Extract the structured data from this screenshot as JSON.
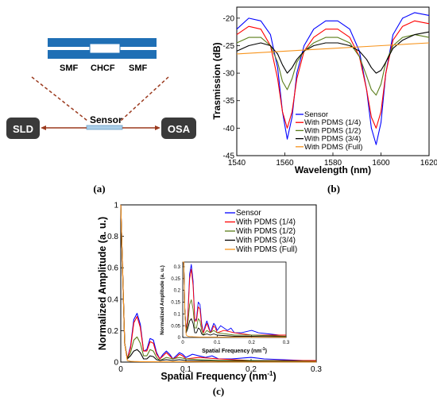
{
  "panel_a": {
    "fiber_labels": [
      "SMF",
      "CHCF",
      "SMF"
    ],
    "sensor_label": "Sensor",
    "source_label": "SLD",
    "analyzer_label": "OSA",
    "colors": {
      "fiber_blue": "#1f6fb5",
      "core_white": "#ffffff",
      "box_dark": "#3a3a3a",
      "arrow_brown": "#9b3a1e",
      "sensor_blue": "#a9cde8",
      "dash": "#9b3a1e"
    }
  },
  "captions": {
    "a": "(a)",
    "b": "(b)",
    "c": "(c)"
  },
  "chart_data": [
    {
      "type": "line",
      "xlabel": "Wavelength (nm)",
      "ylabel": "Trasmission (dB)",
      "xlim": [
        1540,
        1620
      ],
      "ylim": [
        -45,
        -18
      ],
      "xticks": [
        1540,
        1560,
        1580,
        1600,
        1620
      ],
      "yticks": [
        -45,
        -40,
        -35,
        -30,
        -25,
        -20
      ],
      "legend_position": "bottom-left",
      "series": [
        {
          "name": "Sensor",
          "color": "#0000ff",
          "x": [
            1540,
            1545,
            1550,
            1554,
            1557,
            1559,
            1561,
            1563,
            1565,
            1568,
            1572,
            1577,
            1582,
            1587,
            1591,
            1594,
            1596,
            1598,
            1600,
            1602,
            1605,
            1609,
            1614,
            1620
          ],
          "y": [
            -22,
            -20,
            -20.5,
            -23,
            -29,
            -37,
            -42,
            -38,
            -30,
            -25,
            -22,
            -20.5,
            -20.5,
            -22,
            -26,
            -33,
            -40,
            -43,
            -39,
            -30,
            -23,
            -20,
            -19,
            -19.5
          ]
        },
        {
          "name": "With PDMS (1/4)",
          "color": "#ff0000",
          "x": [
            1540,
            1545,
            1550,
            1554,
            1557,
            1559,
            1561,
            1563,
            1565,
            1568,
            1572,
            1577,
            1582,
            1587,
            1591,
            1594,
            1596,
            1598,
            1600,
            1602,
            1605,
            1609,
            1614,
            1620
          ],
          "y": [
            -23,
            -21.5,
            -22,
            -25,
            -31,
            -37,
            -40,
            -37,
            -31,
            -26,
            -23.5,
            -22,
            -22,
            -23.5,
            -27,
            -33,
            -38,
            -40,
            -37,
            -30,
            -24,
            -21.5,
            -20.5,
            -21
          ]
        },
        {
          "name": "With PDMS (1/2)",
          "color": "#5a7d1a",
          "x": [
            1540,
            1545,
            1550,
            1554,
            1557,
            1559,
            1561,
            1563,
            1565,
            1568,
            1572,
            1577,
            1582,
            1587,
            1591,
            1594,
            1596,
            1598,
            1600,
            1602,
            1605,
            1609,
            1614,
            1620
          ],
          "y": [
            -24.5,
            -23.5,
            -23.5,
            -25,
            -28,
            -31.5,
            -33,
            -31,
            -28,
            -26,
            -24.5,
            -23.5,
            -23.5,
            -24.5,
            -27,
            -30.5,
            -33,
            -34,
            -32,
            -28,
            -25,
            -23.5,
            -23,
            -23.5
          ]
        },
        {
          "name": "With PDMS (3/4)",
          "color": "#000000",
          "x": [
            1540,
            1545,
            1550,
            1554,
            1557,
            1559,
            1561,
            1563,
            1565,
            1568,
            1572,
            1577,
            1582,
            1587,
            1591,
            1594,
            1596,
            1598,
            1600,
            1602,
            1605,
            1609,
            1614,
            1620
          ],
          "y": [
            -26,
            -25,
            -24.5,
            -25,
            -26.5,
            -28.5,
            -30,
            -29,
            -27.5,
            -26,
            -25,
            -24.5,
            -24.5,
            -25,
            -26,
            -27.5,
            -29,
            -30,
            -29.5,
            -28,
            -25.5,
            -24,
            -23,
            -22.5
          ]
        },
        {
          "name": "With PDMS (Full)",
          "color": "#f7941d",
          "x": [
            1540,
            1560,
            1580,
            1600,
            1620
          ],
          "y": [
            -26.5,
            -26,
            -25.5,
            -25,
            -24.5
          ]
        }
      ]
    },
    {
      "type": "line",
      "xlabel": "Spatial Frequency (nm",
      "xlabel_sup": "-1",
      "xlabel_tail": ")",
      "ylabel": "Normalized Amplitude (a. u.)",
      "xlim": [
        0,
        0.3
      ],
      "ylim": [
        0,
        1
      ],
      "xticks": [
        0,
        0.1,
        0.2,
        0.3
      ],
      "yticks": [
        0,
        0.2,
        0.4,
        0.6,
        0.8,
        1
      ],
      "legend_position": "top-right",
      "series": [
        {
          "name": "Sensor",
          "color": "#0000ff",
          "x": [
            0,
            0.003,
            0.006,
            0.01,
            0.015,
            0.02,
            0.025,
            0.03,
            0.035,
            0.04,
            0.045,
            0.05,
            0.055,
            0.06,
            0.065,
            0.07,
            0.075,
            0.08,
            0.085,
            0.09,
            0.095,
            0.1,
            0.11,
            0.12,
            0.13,
            0.14,
            0.15,
            0.17,
            0.2,
            0.22,
            0.25,
            0.28,
            0.3
          ],
          "y": [
            1,
            0.55,
            0.12,
            0.02,
            0.1,
            0.27,
            0.31,
            0.24,
            0.07,
            0.08,
            0.15,
            0.14,
            0.06,
            0.02,
            0.05,
            0.07,
            0.05,
            0.02,
            0.04,
            0.06,
            0.05,
            0.03,
            0.05,
            0.04,
            0.03,
            0.04,
            0.02,
            0.02,
            0.03,
            0.02,
            0.015,
            0.01,
            0.01
          ]
        },
        {
          "name": "With PDMS (1/4)",
          "color": "#ff0000",
          "x": [
            0,
            0.003,
            0.006,
            0.01,
            0.015,
            0.02,
            0.025,
            0.03,
            0.035,
            0.04,
            0.045,
            0.05,
            0.055,
            0.06,
            0.065,
            0.07,
            0.075,
            0.08,
            0.085,
            0.09,
            0.095,
            0.1,
            0.12,
            0.15,
            0.2,
            0.3
          ],
          "y": [
            1,
            0.55,
            0.12,
            0.02,
            0.09,
            0.25,
            0.29,
            0.22,
            0.07,
            0.07,
            0.13,
            0.12,
            0.05,
            0.02,
            0.04,
            0.06,
            0.04,
            0.02,
            0.03,
            0.05,
            0.04,
            0.02,
            0.03,
            0.02,
            0.01,
            0.01
          ]
        },
        {
          "name": "With PDMS (1/2)",
          "color": "#5a7d1a",
          "x": [
            0,
            0.003,
            0.006,
            0.01,
            0.015,
            0.02,
            0.025,
            0.03,
            0.035,
            0.04,
            0.045,
            0.05,
            0.055,
            0.06,
            0.07,
            0.08,
            0.09,
            0.1,
            0.15,
            0.2,
            0.3
          ],
          "y": [
            1,
            0.55,
            0.12,
            0.02,
            0.06,
            0.14,
            0.16,
            0.12,
            0.04,
            0.04,
            0.08,
            0.07,
            0.03,
            0.01,
            0.03,
            0.02,
            0.03,
            0.02,
            0.01,
            0.01,
            0.005
          ]
        },
        {
          "name": "With PDMS (3/4)",
          "color": "#000000",
          "x": [
            0,
            0.003,
            0.006,
            0.01,
            0.015,
            0.02,
            0.025,
            0.03,
            0.035,
            0.04,
            0.045,
            0.05,
            0.055,
            0.06,
            0.07,
            0.08,
            0.09,
            0.1,
            0.15,
            0.2,
            0.3
          ],
          "y": [
            1,
            0.55,
            0.12,
            0.02,
            0.04,
            0.07,
            0.08,
            0.06,
            0.02,
            0.02,
            0.04,
            0.035,
            0.015,
            0.01,
            0.015,
            0.01,
            0.015,
            0.01,
            0.005,
            0.005,
            0.003
          ]
        },
        {
          "name": "With PDMS (Full)",
          "color": "#f7941d",
          "x": [
            0,
            0.003,
            0.006,
            0.01,
            0.015,
            0.02,
            0.03,
            0.05,
            0.1,
            0.2,
            0.3
          ],
          "y": [
            1,
            0.55,
            0.12,
            0.01,
            0.005,
            0.004,
            0.003,
            0.002,
            0.002,
            0.001,
            0.001
          ]
        }
      ],
      "inset": {
        "xlabel": "Spatial Frequency (nm",
        "xlabel_sup": "-1",
        "xlabel_tail": ")",
        "ylabel": "Normalized Amplitude (a. u.)",
        "xlim": [
          0,
          0.3
        ],
        "ylim": [
          0,
          0.32
        ],
        "xticks": [
          0,
          0.1,
          0.2,
          0.3
        ],
        "yticks": [
          0,
          0.05,
          0.1,
          0.15,
          0.2,
          0.25,
          0.3
        ]
      }
    }
  ]
}
